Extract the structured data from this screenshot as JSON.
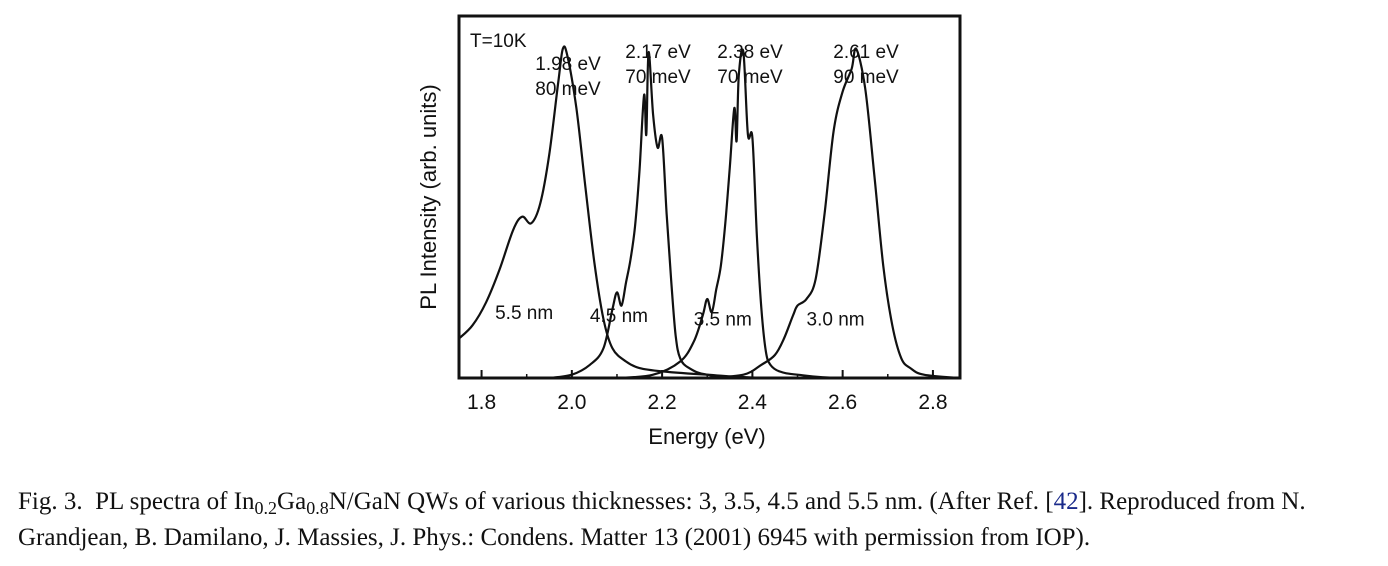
{
  "chart_data": {
    "type": "line",
    "xlabel": "Energy (eV)",
    "ylabel": "PL Intensity (arb. units)",
    "xlim": [
      1.75,
      2.86
    ],
    "ylim": [
      0,
      1.1
    ],
    "xticks": [
      1.8,
      2.0,
      2.2,
      2.4,
      2.6,
      2.8
    ],
    "tick_labels": [
      "1.8",
      "2.0",
      "2.2",
      "2.4",
      "2.6",
      "2.8"
    ],
    "temperature_label": "T=10K",
    "series": [
      {
        "name": "5.5 nm",
        "peak_label": [
          "1.98 eV",
          "80 meV"
        ],
        "x": [
          1.75,
          1.78,
          1.81,
          1.84,
          1.87,
          1.89,
          1.91,
          1.93,
          1.95,
          1.97,
          1.98,
          1.99,
          2.01,
          2.03,
          2.05,
          2.07,
          2.09,
          2.12,
          2.15,
          2.2,
          2.3,
          2.45,
          2.86
        ],
        "values": [
          0.12,
          0.16,
          0.23,
          0.33,
          0.45,
          0.49,
          0.47,
          0.53,
          0.68,
          0.9,
          1.0,
          0.98,
          0.82,
          0.58,
          0.35,
          0.18,
          0.09,
          0.05,
          0.03,
          0.02,
          0.01,
          0.0,
          0.0
        ]
      },
      {
        "name": "4.5 nm",
        "peak_label": [
          "2.17 eV",
          "70 meV"
        ],
        "x": [
          1.95,
          2.0,
          2.04,
          2.07,
          2.09,
          2.1,
          2.11,
          2.12,
          2.13,
          2.14,
          2.15,
          2.16,
          2.165,
          2.17,
          2.18,
          2.19,
          2.2,
          2.21,
          2.22,
          2.23,
          2.24,
          2.26,
          2.3,
          2.4,
          2.86
        ],
        "values": [
          0.0,
          0.01,
          0.04,
          0.09,
          0.21,
          0.26,
          0.22,
          0.29,
          0.36,
          0.46,
          0.63,
          0.86,
          0.74,
          0.99,
          0.8,
          0.7,
          0.73,
          0.5,
          0.3,
          0.13,
          0.06,
          0.03,
          0.01,
          0.0,
          0.0
        ]
      },
      {
        "name": "3.5 nm",
        "peak_label": [
          "2.38 eV",
          "70 meV"
        ],
        "x": [
          2.1,
          2.18,
          2.24,
          2.27,
          2.29,
          2.3,
          2.31,
          2.32,
          2.33,
          2.34,
          2.35,
          2.36,
          2.365,
          2.37,
          2.38,
          2.39,
          2.4,
          2.41,
          2.42,
          2.43,
          2.44,
          2.46,
          2.5,
          2.6,
          2.86
        ],
        "values": [
          0.0,
          0.01,
          0.05,
          0.11,
          0.19,
          0.24,
          0.2,
          0.27,
          0.34,
          0.47,
          0.64,
          0.82,
          0.72,
          0.92,
          0.99,
          0.74,
          0.73,
          0.43,
          0.21,
          0.08,
          0.04,
          0.02,
          0.01,
          0.0,
          0.0
        ]
      },
      {
        "name": "3.0 nm",
        "peak_label": [
          "2.61 eV",
          "90 meV"
        ],
        "x": [
          2.3,
          2.38,
          2.42,
          2.45,
          2.47,
          2.49,
          2.5,
          2.52,
          2.54,
          2.56,
          2.58,
          2.6,
          2.62,
          2.63,
          2.65,
          2.67,
          2.69,
          2.71,
          2.73,
          2.75,
          2.78,
          2.86
        ],
        "values": [
          0.0,
          0.01,
          0.04,
          0.07,
          0.12,
          0.19,
          0.22,
          0.24,
          0.3,
          0.5,
          0.75,
          0.87,
          0.94,
          1.0,
          0.88,
          0.62,
          0.34,
          0.16,
          0.06,
          0.03,
          0.01,
          0.0
        ]
      }
    ]
  },
  "caption": {
    "fig_label": "Fig. 3.",
    "text_1": "PL spectra of In",
    "sub_1": "0.2",
    "text_2": "Ga",
    "sub_2": "0.8",
    "text_3": "N/GaN QWs of various thicknesses: 3, 3.5, 4.5 and 5.5 nm. (After Ref. [",
    "ref_number": "42",
    "text_4": "]. Reproduced from N. Grandjean, B. Damilano, J. Massies, J. Phys.: Condens. Matter 13 (2001) 6945 with permission from IOP)."
  }
}
